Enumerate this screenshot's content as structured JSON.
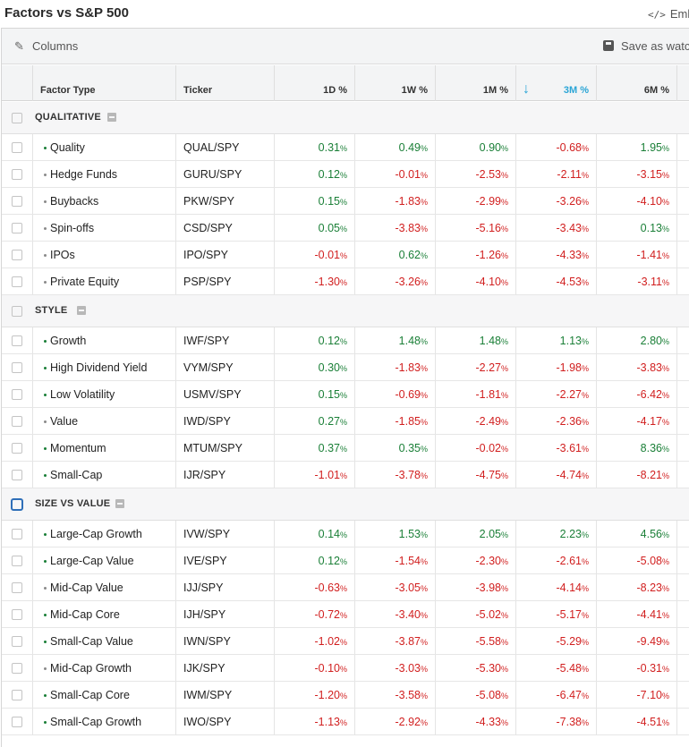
{
  "title": "Factors vs S&P 500",
  "embed_label": "Emb",
  "toolbar": {
    "columns_label": "Columns",
    "save_label": "Save as watch"
  },
  "columns": {
    "factor_type": "Factor Type",
    "ticker": "Ticker",
    "d1": "1D %",
    "w1": "1W %",
    "m1": "1M %",
    "m3": "3M %",
    "m6": "6M %"
  },
  "sort": {
    "column": "3M %",
    "direction": "descending"
  },
  "colors": {
    "positive": "#1a7f37",
    "negative": "#d11f1f",
    "sort_accent": "#2aa5d6"
  },
  "groups": [
    {
      "name": "QUALITATIVE",
      "rows": [
        {
          "factor": "Quality",
          "ticker": "QUAL/SPY",
          "d1": "0.31",
          "w1": "0.49",
          "m1": "0.90",
          "m3": "-0.68",
          "m6": "1.95",
          "dot": "green"
        },
        {
          "factor": "Hedge Funds",
          "ticker": "GURU/SPY",
          "d1": "0.12",
          "w1": "-0.01",
          "m1": "-2.53",
          "m3": "-2.11",
          "m6": "-3.15",
          "dot": "gray"
        },
        {
          "factor": "Buybacks",
          "ticker": "PKW/SPY",
          "d1": "0.15",
          "w1": "-1.83",
          "m1": "-2.99",
          "m3": "-3.26",
          "m6": "-4.10",
          "dot": "gray"
        },
        {
          "factor": "Spin-offs",
          "ticker": "CSD/SPY",
          "d1": "0.05",
          "w1": "-3.83",
          "m1": "-5.16",
          "m3": "-3.43",
          "m6": "0.13",
          "dot": "gray"
        },
        {
          "factor": "IPOs",
          "ticker": "IPO/SPY",
          "d1": "-0.01",
          "w1": "0.62",
          "m1": "-1.26",
          "m3": "-4.33",
          "m6": "-1.41",
          "dot": "gray"
        },
        {
          "factor": "Private Equity",
          "ticker": "PSP/SPY",
          "d1": "-1.30",
          "w1": "-3.26",
          "m1": "-4.10",
          "m3": "-4.53",
          "m6": "-3.11",
          "dot": "gray"
        }
      ]
    },
    {
      "name": "STYLE",
      "rows": [
        {
          "factor": "Growth",
          "ticker": "IWF/SPY",
          "d1": "0.12",
          "w1": "1.48",
          "m1": "1.48",
          "m3": "1.13",
          "m6": "2.80",
          "dot": "green"
        },
        {
          "factor": "High Dividend Yield",
          "ticker": "VYM/SPY",
          "d1": "0.30",
          "w1": "-1.83",
          "m1": "-2.27",
          "m3": "-1.98",
          "m6": "-3.83",
          "dot": "green"
        },
        {
          "factor": "Low Volatility",
          "ticker": "USMV/SPY",
          "d1": "0.15",
          "w1": "-0.69",
          "m1": "-1.81",
          "m3": "-2.27",
          "m6": "-6.42",
          "dot": "green"
        },
        {
          "factor": "Value",
          "ticker": "IWD/SPY",
          "d1": "0.27",
          "w1": "-1.85",
          "m1": "-2.49",
          "m3": "-2.36",
          "m6": "-4.17",
          "dot": "gray"
        },
        {
          "factor": "Momentum",
          "ticker": "MTUM/SPY",
          "d1": "0.37",
          "w1": "0.35",
          "m1": "-0.02",
          "m3": "-3.61",
          "m6": "8.36",
          "dot": "green"
        },
        {
          "factor": "Small-Cap",
          "ticker": "IJR/SPY",
          "d1": "-1.01",
          "w1": "-3.78",
          "m1": "-4.75",
          "m3": "-4.74",
          "m6": "-8.21",
          "dot": "green"
        }
      ]
    },
    {
      "name": "SIZE VS VALUE",
      "rows": [
        {
          "factor": "Large-Cap Growth",
          "ticker": "IVW/SPY",
          "d1": "0.14",
          "w1": "1.53",
          "m1": "2.05",
          "m3": "2.23",
          "m6": "4.56",
          "dot": "green"
        },
        {
          "factor": "Large-Cap Value",
          "ticker": "IVE/SPY",
          "d1": "0.12",
          "w1": "-1.54",
          "m1": "-2.30",
          "m3": "-2.61",
          "m6": "-5.08",
          "dot": "green"
        },
        {
          "factor": "Mid-Cap Value",
          "ticker": "IJJ/SPY",
          "d1": "-0.63",
          "w1": "-3.05",
          "m1": "-3.98",
          "m3": "-4.14",
          "m6": "-8.23",
          "dot": "gray"
        },
        {
          "factor": "Mid-Cap Core",
          "ticker": "IJH/SPY",
          "d1": "-0.72",
          "w1": "-3.40",
          "m1": "-5.02",
          "m3": "-5.17",
          "m6": "-4.41",
          "dot": "green"
        },
        {
          "factor": "Small-Cap Value",
          "ticker": "IWN/SPY",
          "d1": "-1.02",
          "w1": "-3.87",
          "m1": "-5.58",
          "m3": "-5.29",
          "m6": "-9.49",
          "dot": "green"
        },
        {
          "factor": "Mid-Cap Growth",
          "ticker": "IJK/SPY",
          "d1": "-0.10",
          "w1": "-3.03",
          "m1": "-5.30",
          "m3": "-5.48",
          "m6": "-0.31",
          "dot": "gray"
        },
        {
          "factor": "Small-Cap Core",
          "ticker": "IWM/SPY",
          "d1": "-1.20",
          "w1": "-3.58",
          "m1": "-5.08",
          "m3": "-6.47",
          "m6": "-7.10",
          "dot": "green"
        },
        {
          "factor": "Small-Cap Growth",
          "ticker": "IWO/SPY",
          "d1": "-1.13",
          "w1": "-2.92",
          "m1": "-4.33",
          "m3": "-7.38",
          "m6": "-4.51",
          "dot": "green"
        }
      ]
    }
  ]
}
